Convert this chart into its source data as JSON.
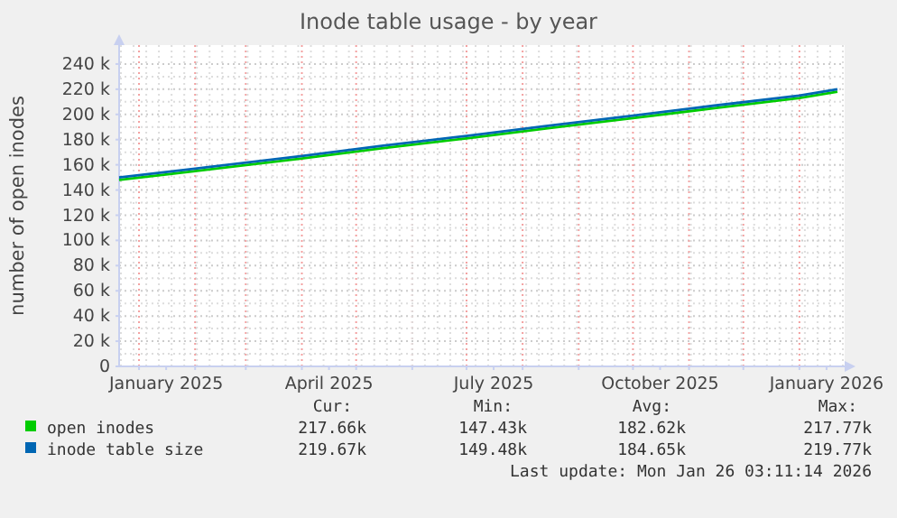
{
  "chart_data": {
    "type": "line",
    "title": "Inode table usage - by year",
    "ylabel": "number of open inodes",
    "x": [
      "2024-12-21",
      "2025-02-01",
      "2025-04-01",
      "2025-05-15",
      "2025-07-01",
      "2025-08-15",
      "2025-10-01",
      "2025-11-15",
      "2026-01-01",
      "2026-01-22"
    ],
    "series": [
      {
        "name": "open inodes",
        "color": "#00cc00",
        "values": [
          148000,
          155000,
          165000,
          173000,
          181000,
          189000,
          197000,
          205000,
          213000,
          218000
        ]
      },
      {
        "name": "inode table size",
        "color": "#0066b3",
        "values": [
          150000,
          157000,
          167000,
          175000,
          183000,
          191000,
          199000,
          207000,
          215000,
          220000
        ]
      }
    ],
    "xlim": [
      "2024-12-21",
      "2026-01-26"
    ],
    "xticks": [
      {
        "value": "2025-01-01",
        "label": null
      },
      {
        "value": "2025-02-01",
        "label": null
      },
      {
        "value": "2025-03-01",
        "label": null
      },
      {
        "value": "2025-04-01",
        "label": null
      },
      {
        "value": "2025-05-01",
        "label": null
      },
      {
        "value": "2025-06-01",
        "label": null
      },
      {
        "value": "2025-07-01",
        "label": null
      },
      {
        "value": "2025-08-01",
        "label": null
      },
      {
        "value": "2025-09-01",
        "label": null
      },
      {
        "value": "2025-10-01",
        "label": null
      },
      {
        "value": "2025-11-01",
        "label": null
      },
      {
        "value": "2025-12-01",
        "label": null
      },
      {
        "value": "2026-01-01",
        "label": null
      },
      {
        "value": "2025-01-16",
        "label": "January 2025"
      },
      {
        "value": "2025-04-16",
        "label": "April 2025"
      },
      {
        "value": "2025-07-16",
        "label": "July 2025"
      },
      {
        "value": "2025-10-16",
        "label": "October 2025"
      },
      {
        "value": "2026-01-16",
        "label": "January 2026"
      }
    ],
    "ylim": [
      0,
      255000
    ],
    "yticks": [
      0,
      {
        "value": 20000,
        "label": "20 k"
      },
      {
        "value": 40000,
        "label": "40 k"
      },
      {
        "value": 60000,
        "label": "60 k"
      },
      {
        "value": 80000,
        "label": "80 k"
      },
      {
        "value": 100000,
        "label": "100 k"
      },
      {
        "value": 120000,
        "label": "120 k"
      },
      {
        "value": 140000,
        "label": "140 k"
      },
      {
        "value": 160000,
        "label": "160 k"
      },
      {
        "value": 180000,
        "label": "180 k"
      },
      {
        "value": 200000,
        "label": "200 k"
      },
      {
        "value": 220000,
        "label": "220 k"
      },
      {
        "value": 240000,
        "label": "240 k"
      }
    ],
    "grid": true,
    "legend": "bottom",
    "marker": "none",
    "line_style": "solid",
    "annotations": [
      "Cur:",
      "Min:",
      "Avg:",
      "Max:",
      "217.66k",
      "147.43k",
      "182.62k",
      "217.77k",
      "219.67k",
      "149.48k",
      "184.65k",
      "219.77k",
      "Last update: Mon Jan 26 03:11:14 2026"
    ]
  }
}
